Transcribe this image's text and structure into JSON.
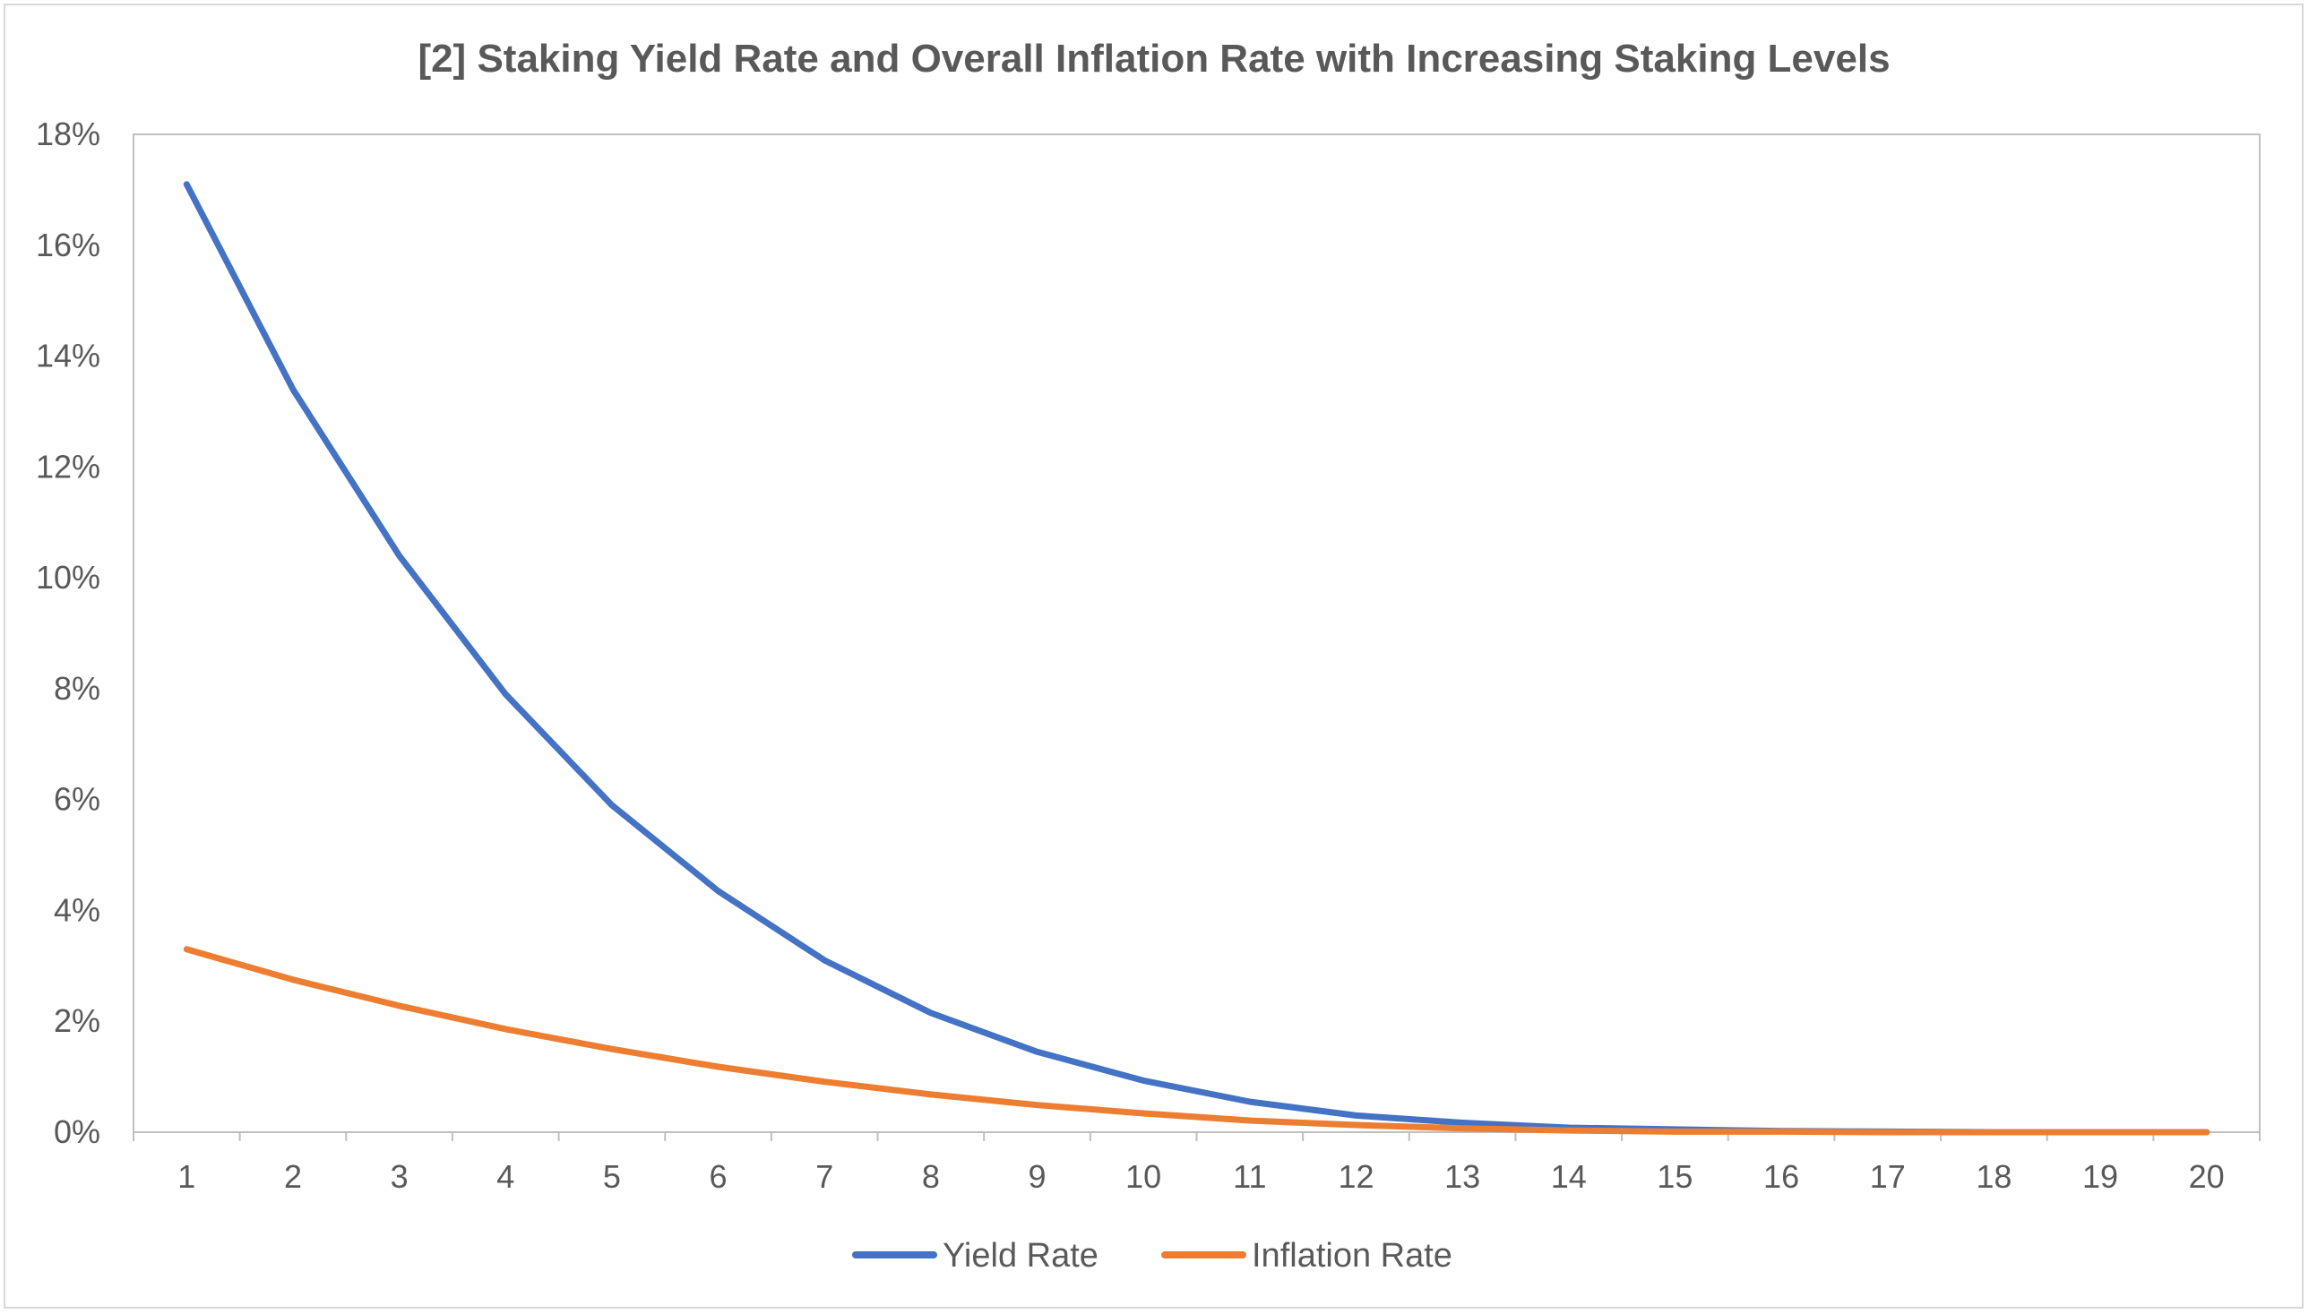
{
  "chart_data": {
    "type": "line",
    "title": "[2] Staking Yield Rate and Overall Inflation Rate with Increasing Staking Levels",
    "xlabel": "",
    "ylabel": "",
    "x": [
      1,
      2,
      3,
      4,
      5,
      6,
      7,
      8,
      9,
      10,
      11,
      12,
      13,
      14,
      15,
      16,
      17,
      18,
      19,
      20
    ],
    "x_tick_labels": [
      "1",
      "2",
      "3",
      "4",
      "5",
      "6",
      "7",
      "8",
      "9",
      "10",
      "11",
      "12",
      "13",
      "14",
      "15",
      "16",
      "17",
      "18",
      "19",
      "20"
    ],
    "ylim": [
      0,
      18
    ],
    "y_tick_values": [
      0,
      2,
      4,
      6,
      8,
      10,
      12,
      14,
      16,
      18
    ],
    "y_tick_labels": [
      "0%",
      "2%",
      "4%",
      "6%",
      "8%",
      "10%",
      "12%",
      "14%",
      "16%",
      "18%"
    ],
    "grid": false,
    "legend_position": "bottom",
    "series": [
      {
        "name": "Yield Rate",
        "color": "#4472c4",
        "values": [
          17.1,
          13.4,
          10.4,
          7.9,
          5.9,
          4.35,
          3.1,
          2.15,
          1.45,
          0.93,
          0.55,
          0.3,
          0.17,
          0.08,
          0.05,
          0.02,
          0.01,
          0.0,
          0.0,
          0.0
        ]
      },
      {
        "name": "Inflation Rate",
        "color": "#ed7d31",
        "values": [
          3.3,
          2.75,
          2.28,
          1.86,
          1.5,
          1.18,
          0.91,
          0.68,
          0.49,
          0.34,
          0.21,
          0.13,
          0.07,
          0.03,
          0.01,
          0.01,
          0.0,
          0.0,
          0.0,
          0.0
        ]
      }
    ]
  }
}
